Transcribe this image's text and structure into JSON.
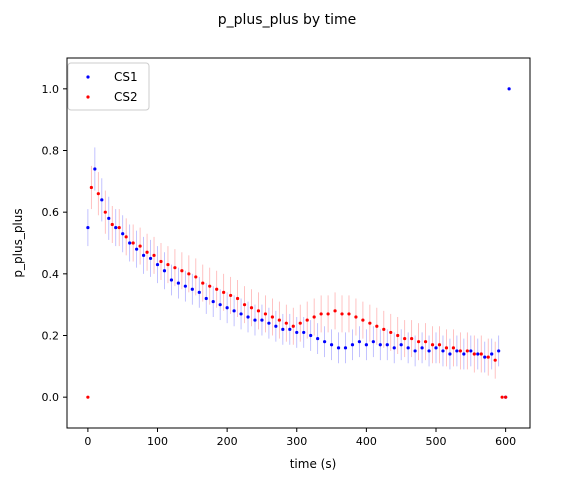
{
  "chart_data": {
    "type": "scatter",
    "title": "p_plus_plus by time",
    "xlabel": "time (s)",
    "ylabel": "p_plus_plus",
    "xlim": [
      -30,
      635
    ],
    "ylim": [
      -0.1,
      1.1
    ],
    "x_ticks": [
      0,
      100,
      200,
      300,
      400,
      500,
      600
    ],
    "y_ticks": [
      0.0,
      0.2,
      0.4,
      0.6,
      0.8,
      1.0
    ],
    "x_tick_labels": [
      "0",
      "100",
      "200",
      "300",
      "400",
      "500",
      "600"
    ],
    "y_tick_labels": [
      "0.0",
      "0.2",
      "0.4",
      "0.6",
      "0.8",
      "1.0"
    ],
    "grid": false,
    "legend_position": "top-left",
    "error_bars": true,
    "series": [
      {
        "name": "CS1",
        "color": "#0000ff",
        "x": [
          0,
          10,
          20,
          30,
          40,
          50,
          60,
          70,
          80,
          90,
          100,
          110,
          120,
          130,
          140,
          150,
          160,
          170,
          180,
          190,
          200,
          210,
          220,
          230,
          240,
          250,
          260,
          270,
          280,
          290,
          300,
          310,
          320,
          330,
          340,
          350,
          360,
          370,
          380,
          390,
          400,
          410,
          420,
          430,
          440,
          450,
          460,
          470,
          480,
          490,
          500,
          510,
          520,
          530,
          540,
          550,
          560,
          570,
          580,
          590,
          600,
          605
        ],
        "y": [
          0.55,
          0.74,
          0.64,
          0.58,
          0.55,
          0.53,
          0.5,
          0.48,
          0.46,
          0.45,
          0.43,
          0.41,
          0.38,
          0.37,
          0.36,
          0.35,
          0.34,
          0.32,
          0.31,
          0.3,
          0.29,
          0.28,
          0.27,
          0.26,
          0.25,
          0.25,
          0.24,
          0.23,
          0.22,
          0.22,
          0.21,
          0.21,
          0.2,
          0.19,
          0.18,
          0.17,
          0.16,
          0.16,
          0.17,
          0.18,
          0.17,
          0.18,
          0.17,
          0.17,
          0.16,
          0.17,
          0.16,
          0.15,
          0.16,
          0.15,
          0.16,
          0.15,
          0.14,
          0.15,
          0.14,
          0.15,
          0.14,
          0.13,
          0.14,
          0.15,
          0.0,
          1.0
        ],
        "err": [
          0.06,
          0.07,
          0.07,
          0.07,
          0.06,
          0.06,
          0.06,
          0.06,
          0.06,
          0.06,
          0.06,
          0.06,
          0.05,
          0.05,
          0.05,
          0.05,
          0.05,
          0.05,
          0.05,
          0.05,
          0.05,
          0.05,
          0.05,
          0.05,
          0.05,
          0.05,
          0.05,
          0.05,
          0.05,
          0.05,
          0.05,
          0.05,
          0.05,
          0.05,
          0.05,
          0.05,
          0.05,
          0.05,
          0.05,
          0.05,
          0.05,
          0.05,
          0.05,
          0.05,
          0.05,
          0.05,
          0.05,
          0.05,
          0.05,
          0.05,
          0.05,
          0.05,
          0.05,
          0.05,
          0.05,
          0.05,
          0.05,
          0.05,
          0.05,
          0.05,
          0,
          0
        ]
      },
      {
        "name": "CS2",
        "color": "#ff0000",
        "x": [
          0,
          5,
          15,
          25,
          35,
          45,
          55,
          65,
          75,
          85,
          95,
          105,
          115,
          125,
          135,
          145,
          155,
          165,
          175,
          185,
          195,
          205,
          215,
          225,
          235,
          245,
          255,
          265,
          275,
          285,
          295,
          305,
          315,
          325,
          335,
          345,
          355,
          365,
          375,
          385,
          395,
          405,
          415,
          425,
          435,
          445,
          455,
          465,
          475,
          485,
          495,
          505,
          515,
          525,
          535,
          545,
          555,
          565,
          575,
          585,
          595,
          600
        ],
        "y": [
          0.0,
          0.68,
          0.66,
          0.6,
          0.56,
          0.55,
          0.52,
          0.5,
          0.49,
          0.47,
          0.46,
          0.44,
          0.43,
          0.42,
          0.41,
          0.4,
          0.39,
          0.37,
          0.36,
          0.35,
          0.34,
          0.33,
          0.32,
          0.3,
          0.29,
          0.28,
          0.27,
          0.26,
          0.25,
          0.24,
          0.23,
          0.24,
          0.25,
          0.26,
          0.27,
          0.27,
          0.28,
          0.27,
          0.27,
          0.26,
          0.25,
          0.24,
          0.23,
          0.22,
          0.21,
          0.2,
          0.19,
          0.19,
          0.18,
          0.18,
          0.17,
          0.17,
          0.16,
          0.16,
          0.15,
          0.15,
          0.14,
          0.14,
          0.13,
          0.12,
          0.0,
          0.0
        ],
        "err": [
          0,
          0.07,
          0.07,
          0.07,
          0.06,
          0.06,
          0.06,
          0.06,
          0.06,
          0.06,
          0.06,
          0.06,
          0.06,
          0.06,
          0.06,
          0.06,
          0.06,
          0.06,
          0.06,
          0.06,
          0.06,
          0.06,
          0.06,
          0.06,
          0.06,
          0.06,
          0.06,
          0.06,
          0.06,
          0.06,
          0.06,
          0.06,
          0.06,
          0.06,
          0.06,
          0.06,
          0.06,
          0.06,
          0.06,
          0.06,
          0.06,
          0.06,
          0.06,
          0.06,
          0.06,
          0.06,
          0.06,
          0.06,
          0.06,
          0.06,
          0.06,
          0.06,
          0.06,
          0.06,
          0.06,
          0.06,
          0.06,
          0.06,
          0.06,
          0.06,
          0,
          0
        ]
      }
    ]
  }
}
